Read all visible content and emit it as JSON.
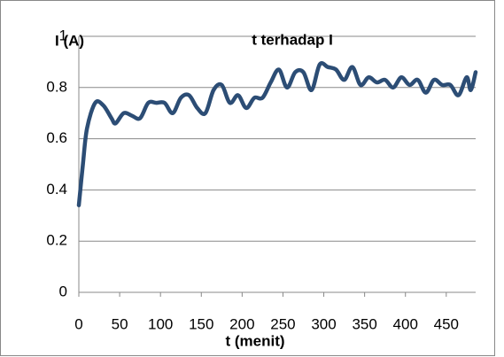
{
  "chart_data": {
    "type": "line",
    "title": "t terhadap I",
    "x_label": "t (menit)",
    "y_label": "I (A)",
    "x": [
      0,
      5,
      10,
      20,
      30,
      40,
      45,
      55,
      65,
      75,
      85,
      95,
      105,
      115,
      125,
      135,
      145,
      155,
      165,
      175,
      185,
      195,
      205,
      215,
      225,
      235,
      245,
      255,
      265,
      275,
      285,
      295,
      305,
      315,
      325,
      335,
      345,
      355,
      365,
      375,
      385,
      395,
      405,
      415,
      425,
      435,
      445,
      455,
      465,
      475,
      480,
      486
    ],
    "series": [
      {
        "name": "I",
        "color": "#2c4d75",
        "values": [
          0.34,
          0.5,
          0.64,
          0.74,
          0.73,
          0.68,
          0.66,
          0.7,
          0.69,
          0.68,
          0.74,
          0.74,
          0.74,
          0.7,
          0.76,
          0.77,
          0.72,
          0.7,
          0.79,
          0.81,
          0.74,
          0.77,
          0.72,
          0.76,
          0.76,
          0.82,
          0.87,
          0.8,
          0.86,
          0.86,
          0.79,
          0.89,
          0.88,
          0.87,
          0.83,
          0.88,
          0.81,
          0.84,
          0.82,
          0.83,
          0.8,
          0.84,
          0.81,
          0.83,
          0.78,
          0.83,
          0.81,
          0.81,
          0.77,
          0.84,
          0.79,
          0.86
        ]
      }
    ],
    "xlim": [
      0,
      486
    ],
    "xticks": [
      0,
      50,
      100,
      150,
      200,
      250,
      300,
      350,
      400,
      450
    ],
    "ylim": [
      0,
      1
    ],
    "yticks": [
      0,
      0.2,
      0.4,
      0.6,
      0.8,
      1
    ],
    "grid": true
  }
}
